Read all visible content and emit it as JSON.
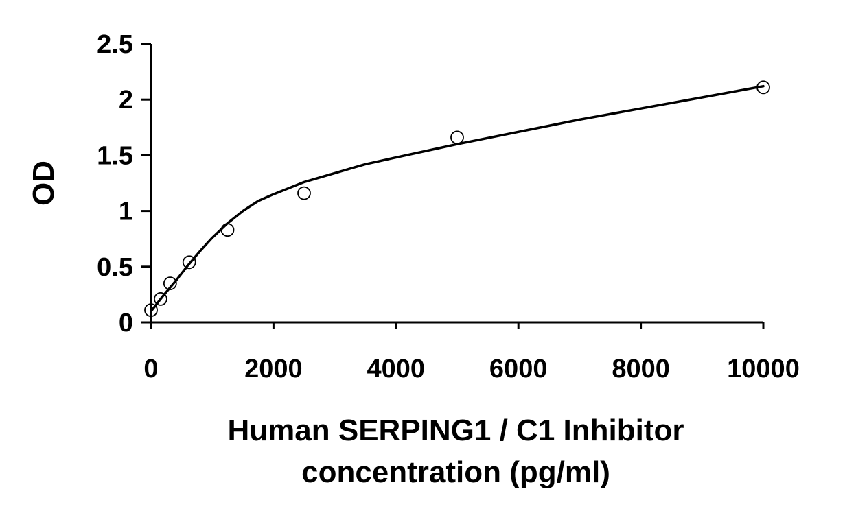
{
  "chart_data": {
    "type": "scatter",
    "xlabel_lines": [
      "Human SERPING1 / C1 Inhibitor",
      "concentration (pg/ml)"
    ],
    "ylabel": "OD",
    "xlim": [
      0,
      10000
    ],
    "ylim": [
      0,
      2.5
    ],
    "x_ticks": [
      0,
      2000,
      4000,
      6000,
      8000,
      10000
    ],
    "x_tick_labels": [
      "0",
      "2000",
      "4000",
      "6000",
      "8000",
      "10000"
    ],
    "y_ticks": [
      0,
      0.5,
      1,
      1.5,
      2,
      2.5
    ],
    "y_tick_labels": [
      "0",
      "0.5",
      "1",
      "1.5",
      "2",
      "2.5"
    ],
    "grid": false,
    "legend": "none",
    "series": [
      {
        "marker": "open-circle",
        "x": [
          0,
          156,
          312,
          625,
          1250,
          2500,
          5000,
          10000
        ],
        "y": [
          0.11,
          0.21,
          0.35,
          0.54,
          0.83,
          1.16,
          1.66,
          2.11
        ]
      }
    ],
    "fit_curve": {
      "style": "solid",
      "x": [
        0,
        200,
        400,
        600,
        800,
        1000,
        1250,
        1500,
        1750,
        2000,
        2500,
        3000,
        3500,
        4000,
        5000,
        6000,
        7000,
        8000,
        9000,
        10000
      ],
      "y": [
        0.1,
        0.24,
        0.37,
        0.51,
        0.64,
        0.76,
        0.89,
        1.0,
        1.09,
        1.15,
        1.26,
        1.34,
        1.42,
        1.48,
        1.6,
        1.71,
        1.82,
        1.92,
        2.02,
        2.12
      ]
    },
    "colors": {
      "axis": "#000000",
      "marker": "#000000",
      "curve": "#000000",
      "background": "#ffffff"
    }
  }
}
